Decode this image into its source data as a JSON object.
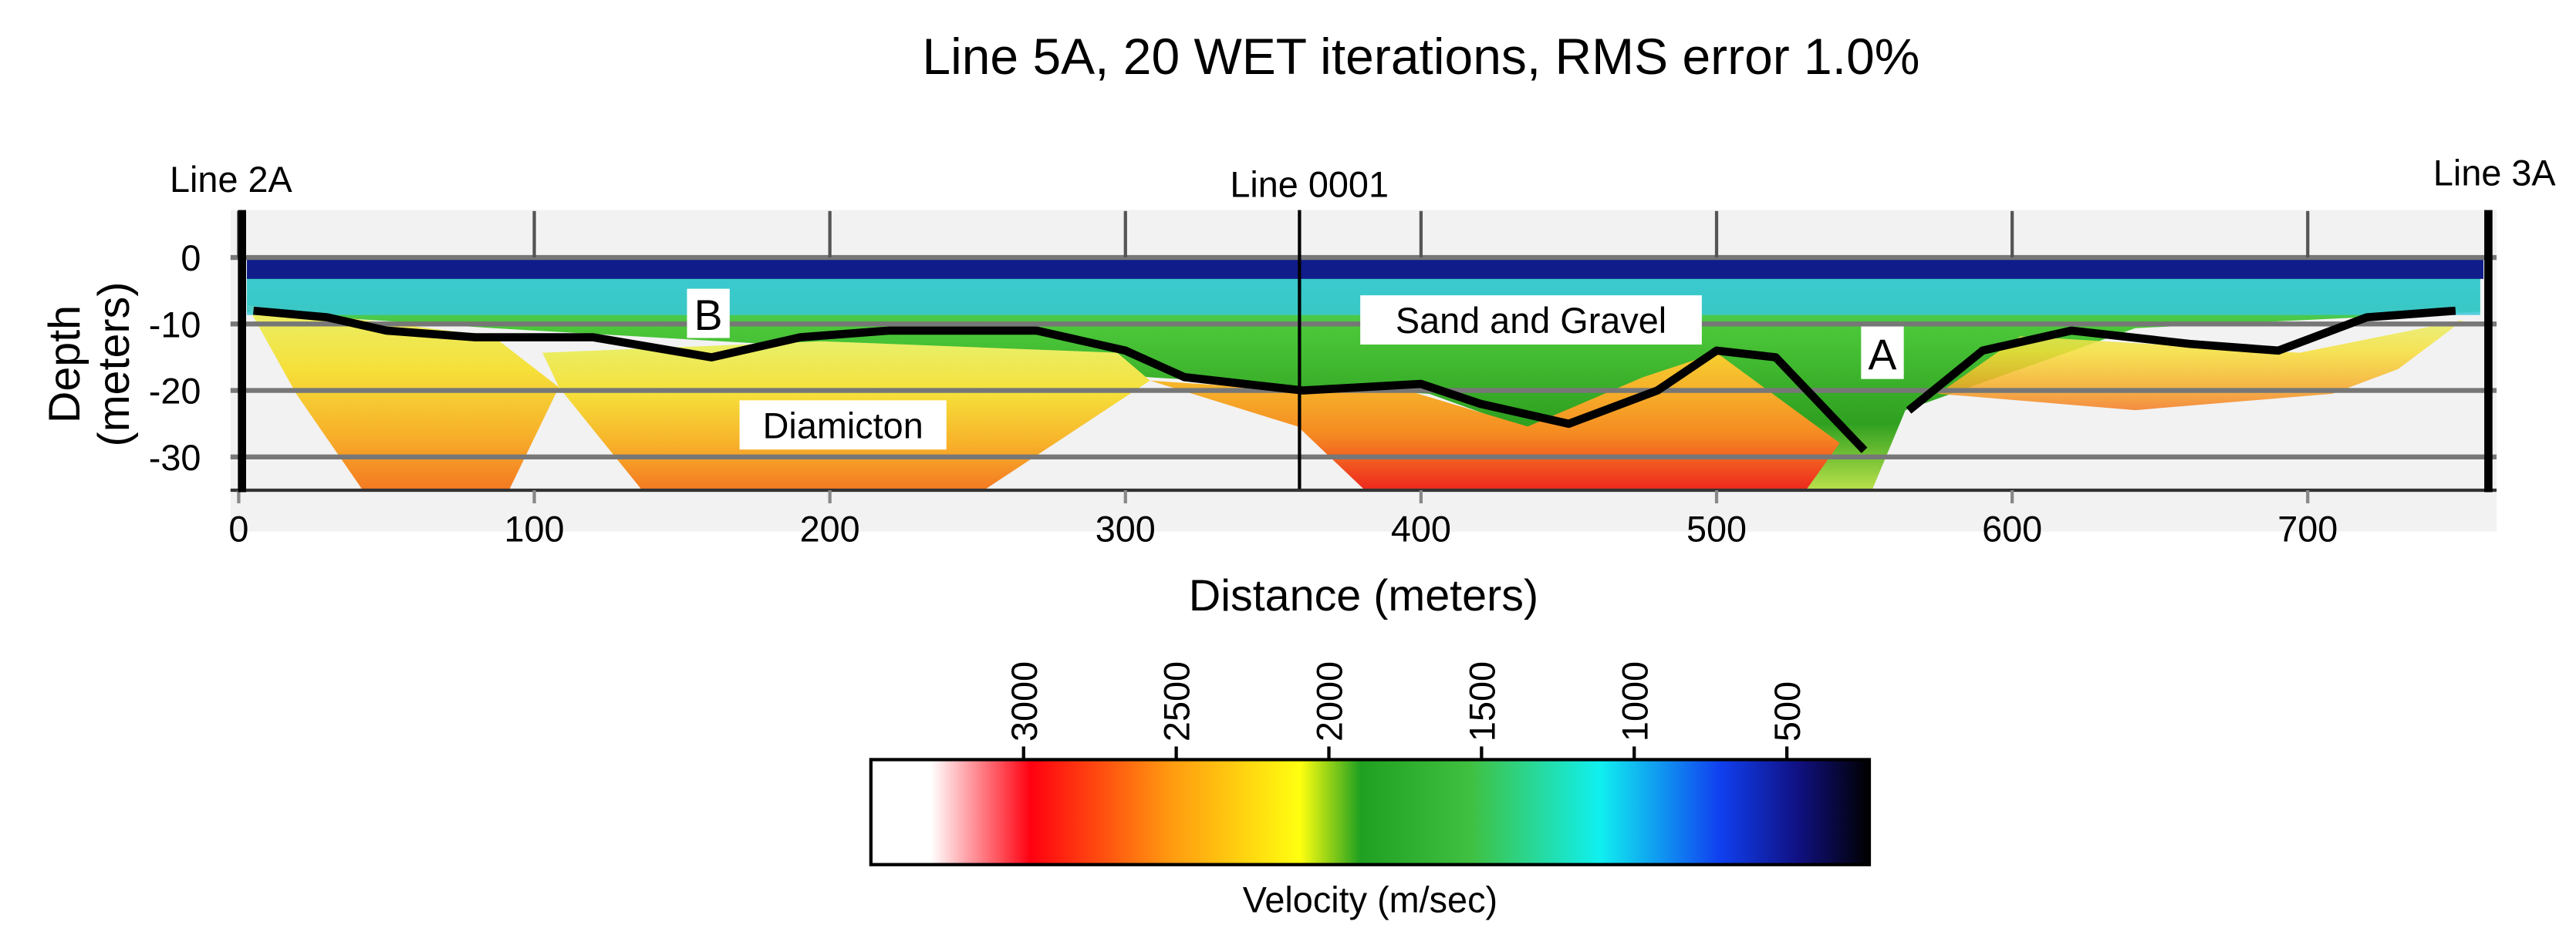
{
  "chart_data": {
    "type": "tomogram",
    "title": "Line 5A, 20 WET iterations, RMS error 1.0%",
    "xlabel": "Distance (meters)",
    "ylabel": [
      "Depth",
      "(meters)"
    ],
    "xlim": [
      0,
      760
    ],
    "xticks": [
      0,
      100,
      200,
      300,
      400,
      500,
      600,
      700
    ],
    "ylim": [
      -35,
      7
    ],
    "yticks": [
      0,
      -10,
      -20,
      -30
    ],
    "grid": true,
    "annotations": [
      "Line 2A",
      "Line 0001",
      "Line 3A",
      "B",
      "Sand and Gravel",
      "A",
      "Diamicton"
    ],
    "interface": {
      "x": [
        5,
        30,
        50,
        80,
        120,
        160,
        190,
        220,
        270,
        300,
        320,
        360,
        400,
        420,
        450,
        480,
        500,
        520,
        550,
        null,
        565,
        590,
        620,
        660,
        690,
        720,
        750
      ],
      "y": [
        -8,
        -9,
        -11,
        -12,
        -12,
        -15,
        -12,
        -11,
        -11,
        -14,
        -18,
        -20,
        -19,
        -22,
        -25,
        -20,
        -14,
        -15,
        -29,
        null,
        -23,
        -14,
        -11,
        -13,
        -14,
        -9,
        -8
      ]
    },
    "colorbar": {
      "label": "Velocity (m/sec)",
      "lim": [
        3500,
        230
      ],
      "ticks": [
        3000,
        2500,
        2000,
        1500,
        1000,
        500
      ]
    }
  }
}
